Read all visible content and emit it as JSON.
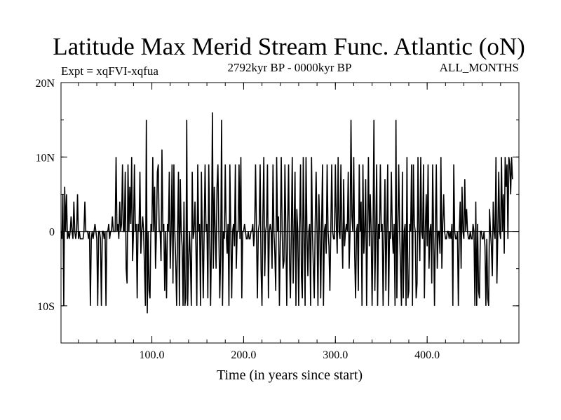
{
  "chart_data": {
    "type": "line",
    "title": "Latitude Max Merid Stream Func. Atlantic (oN)",
    "subtitle_left": "Expt = xqFVI-xqfua",
    "subtitle_center": "2792kyr BP - 0000kyr BP",
    "subtitle_right": "ALL_MONTHS",
    "xlabel": "Time (in years since start)",
    "ylabel": "",
    "xlim": [
      1,
      500
    ],
    "ylim": [
      -15,
      20
    ],
    "x_ticks": [
      {
        "value": 100,
        "label": "100.0"
      },
      {
        "value": 200,
        "label": "200.0"
      },
      {
        "value": 300,
        "label": "300.0"
      },
      {
        "value": 400,
        "label": "400.0"
      }
    ],
    "y_ticks": [
      {
        "value": 20,
        "label": "20N"
      },
      {
        "value": 10,
        "label": "10N"
      },
      {
        "value": 0,
        "label": "0"
      },
      {
        "value": -10,
        "label": "10S"
      }
    ],
    "reference_line": 0,
    "grid": false,
    "series": [
      {
        "color": "#000000",
        "x_start": 1,
        "x_step": 1,
        "values": [
          0,
          -1,
          5,
          -10,
          6,
          0,
          5,
          -1,
          0,
          -1,
          0,
          2,
          0,
          -1,
          4,
          0,
          -1,
          0,
          5,
          -1,
          0,
          -1,
          -1,
          -1,
          -1,
          0,
          4,
          0,
          0,
          0,
          -1,
          0,
          -10,
          -1,
          0,
          -1,
          0,
          1,
          0,
          -1,
          -10,
          0,
          0,
          -1,
          -10,
          0,
          0,
          -1,
          0,
          -10,
          0,
          0,
          1,
          -1,
          0,
          0,
          2,
          0,
          0,
          0,
          10,
          0,
          1,
          -1,
          4,
          0,
          1,
          9,
          0,
          0,
          8,
          -5,
          -7,
          9,
          0,
          6,
          1,
          10,
          -4,
          0,
          9,
          0,
          1,
          -9,
          1,
          0,
          8,
          -3,
          0,
          2,
          0,
          -5,
          -10,
          15,
          -11,
          0,
          -8,
          -9,
          1,
          0,
          10,
          0,
          6,
          -5,
          0,
          8,
          9,
          0,
          0,
          -4,
          11,
          0,
          1,
          -8,
          0,
          -9,
          1,
          0,
          8,
          -5,
          0,
          9,
          -7,
          9,
          0,
          -4,
          -10,
          0,
          8,
          -10,
          7,
          0,
          -2,
          -10,
          4,
          -10,
          -9,
          15,
          -10,
          -4,
          0,
          -4,
          -10,
          8,
          -1,
          0,
          4,
          -2,
          -10,
          9,
          0,
          1,
          -10,
          8,
          -1,
          -9,
          0,
          9,
          0,
          1,
          -9,
          9,
          0,
          -10,
          -1,
          16,
          -5,
          6,
          0,
          -5,
          6,
          9,
          0,
          -9,
          -3,
          15,
          -10,
          0,
          -1,
          9,
          0,
          -3,
          1,
          -10,
          9,
          0,
          -9,
          0,
          1,
          -2,
          9,
          -5,
          0,
          0,
          9,
          -1,
          10,
          -9,
          0,
          0,
          1,
          0,
          -1,
          -1,
          0,
          -1,
          -1,
          0,
          0,
          1,
          -2,
          0,
          9,
          0,
          -9,
          0,
          1,
          9,
          -5,
          -10,
          2,
          10,
          -6,
          0,
          1,
          9,
          -9,
          0,
          1,
          0,
          -5,
          9,
          0,
          -3,
          -8,
          10,
          0,
          2,
          -10,
          -1,
          10,
          0,
          -5,
          -4,
          9,
          0,
          -10,
          1,
          9,
          -4,
          -9,
          0,
          10,
          -7,
          0,
          8,
          -10,
          3,
          0,
          -10,
          0,
          9,
          -6,
          -9,
          10,
          0,
          -10,
          10,
          0,
          -6,
          0,
          1,
          -10,
          10,
          0,
          -5,
          -9,
          1,
          8,
          0,
          -10,
          5,
          0,
          -9,
          1,
          9,
          -10,
          0,
          1,
          -3,
          9,
          0,
          -2,
          -8,
          0,
          9,
          0,
          -1,
          -1,
          9,
          1,
          -3,
          10,
          0,
          -1,
          9,
          0,
          -5,
          7,
          -2,
          0,
          1,
          0,
          8,
          -5,
          0,
          15,
          2,
          0,
          10,
          -3,
          -9,
          0,
          1,
          -8,
          9,
          0,
          4,
          -10,
          9,
          -3,
          0,
          7,
          -10,
          0,
          10,
          -2,
          5,
          0,
          -10,
          0,
          15,
          -8,
          0,
          9,
          -10,
          1,
          -1,
          9,
          0,
          1,
          -10,
          0,
          7,
          -8,
          0,
          9,
          -10,
          0,
          -1,
          8,
          0,
          -3,
          1,
          -10,
          15,
          -9,
          0,
          9,
          0,
          -5,
          -10,
          8,
          -9,
          0,
          1,
          -10,
          10,
          -9,
          -8,
          1,
          0,
          9,
          -10,
          9,
          1,
          0,
          -9,
          -7,
          10,
          0,
          -4,
          10,
          0,
          -1,
          9,
          -9,
          0,
          5,
          -2,
          9,
          -5,
          0,
          1,
          -7,
          9,
          0,
          -10,
          1,
          9,
          -5,
          0,
          0,
          -3,
          10,
          -5,
          1,
          5,
          0,
          -1,
          -1,
          0,
          0,
          -1,
          0,
          -1,
          1,
          -10,
          9,
          0,
          -1,
          -1,
          0,
          -10,
          0,
          4,
          -5,
          6,
          0,
          -1,
          7,
          0,
          3,
          0,
          -1,
          -1,
          0,
          -1,
          -1,
          1,
          0,
          -10,
          4,
          -10,
          1,
          -8,
          -9,
          0,
          0,
          -1,
          -1,
          0,
          -2,
          -10,
          -1,
          -9,
          -10,
          3,
          0,
          -2,
          -6,
          4,
          0,
          -1,
          10,
          -7,
          0,
          8,
          0,
          -1,
          10,
          0,
          5,
          -3,
          10,
          6,
          9,
          -1,
          10,
          9,
          5,
          10,
          7
        ]
      }
    ]
  }
}
